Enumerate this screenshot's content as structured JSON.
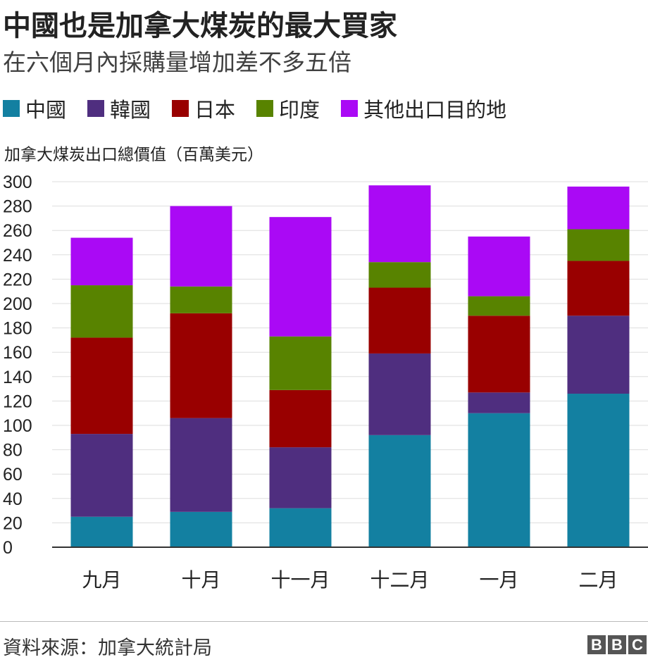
{
  "header": {
    "title": "中國也是加拿大煤炭的最大買家",
    "subtitle": "在六個月內採購量增加差不多五倍"
  },
  "colors": {
    "中國": "#1380a1",
    "韓國": "#4f2e7f",
    "日本": "#990000",
    "印度": "#588300",
    "其他出口目的地": "#aa09f5"
  },
  "chart_data": {
    "type": "bar",
    "stacked": true,
    "title": "中國也是加拿大煤炭的最大買家",
    "subtitle": "在六個月內採購量增加差不多五倍",
    "ylabel": "加拿大煤炭出口總價值（百萬美元）",
    "xlabel": "",
    "ylim": [
      0,
      300
    ],
    "yticks": [
      0,
      20,
      40,
      60,
      80,
      100,
      120,
      140,
      160,
      180,
      200,
      220,
      240,
      260,
      280,
      300
    ],
    "categories": [
      "九月",
      "十月",
      "十一月",
      "十二月",
      "一月",
      "二月"
    ],
    "legend_position": "top",
    "series": [
      {
        "name": "中國",
        "values": [
          25,
          29,
          32,
          92,
          110,
          126
        ]
      },
      {
        "name": "韓國",
        "values": [
          68,
          77,
          50,
          67,
          17,
          64
        ]
      },
      {
        "name": "日本",
        "values": [
          79,
          86,
          47,
          54,
          63,
          45
        ]
      },
      {
        "name": "印度",
        "values": [
          43,
          22,
          44,
          21,
          16,
          26
        ]
      },
      {
        "name": "其他出口目的地",
        "values": [
          39,
          66,
          98,
          63,
          49,
          35
        ]
      }
    ]
  },
  "footer": {
    "source": "資料來源：加拿大統計局",
    "logo_letters": [
      "B",
      "B",
      "C"
    ]
  }
}
